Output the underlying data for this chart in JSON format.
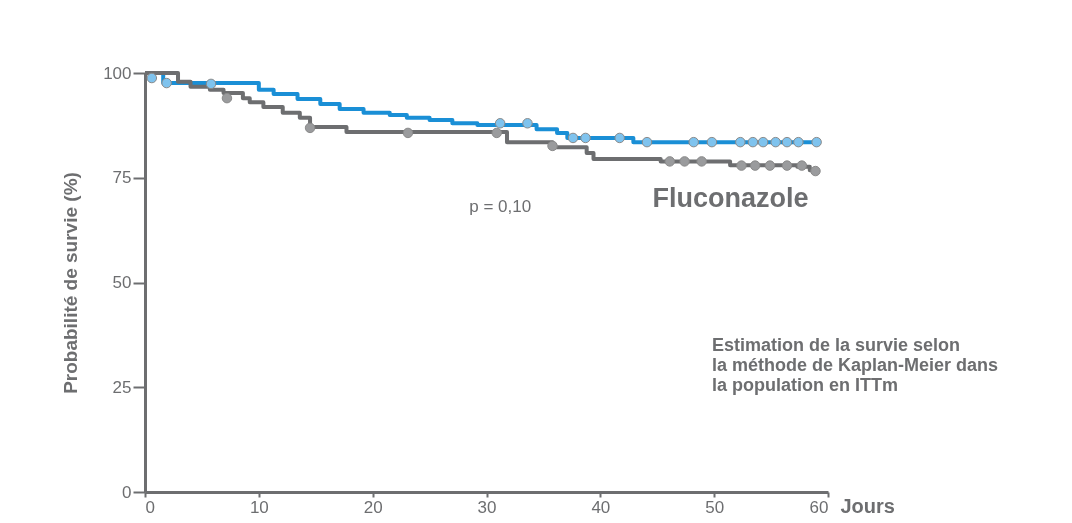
{
  "chart_data": {
    "type": "step",
    "xlabel": "Jours",
    "ylabel": "Probabilité de survie (%)",
    "xlim": [
      0,
      60
    ],
    "xticks": [
      0,
      10,
      20,
      30,
      40,
      50,
      60
    ],
    "ylim": [
      0,
      100
    ],
    "yticks": [
      0,
      25,
      50,
      75,
      100
    ],
    "grid": false,
    "line_style": "solid",
    "annotations": [
      "p = 0,10",
      "Estimation de la survie selon la méthode de Kaplan-Meier dans la population en ITTm"
    ],
    "series": [
      {
        "color": "#1a8fd6",
        "x": [
          0,
          1.6,
          10,
          11.3,
          13.4,
          15.4,
          17.1,
          19.2,
          21.5,
          23,
          25,
          27,
          29.2,
          34.4,
          36.2,
          37.1,
          42.9,
          59
        ],
        "values": [
          100,
          97.6,
          96,
          95,
          93.8,
          92.6,
          91.4,
          90.5,
          90,
          89.3,
          88.8,
          88,
          87.6,
          86.6,
          85.7,
          84.5,
          83.5,
          83.5
        ]
      },
      {
        "name": "Fluconazole",
        "color": "#6d6e70",
        "x": [
          0,
          2.9,
          4,
          5.7,
          6.9,
          8.6,
          9.2,
          10.4,
          12.1,
          13.6,
          14.5,
          17.7,
          31.8,
          35.8,
          38.8,
          39.4,
          45.3,
          51.4,
          57.3,
          58.4,
          59
        ],
        "values": [
          100,
          97.9,
          96.7,
          96,
          95.2,
          94,
          93,
          91.9,
          90.5,
          89.3,
          87.1,
          85.9,
          83.5,
          82.3,
          80.9,
          79.5,
          78.9,
          78,
          77.6,
          76.8,
          76.8
        ]
      },
      {
        "type": "scatter",
        "marker": "circle",
        "color": "#7fc3ee",
        "x": [
          0.6,
          1.9,
          5.8,
          31.2,
          33.6,
          37.6,
          38.7,
          41.7,
          44.1,
          48.2,
          49.8,
          52.3,
          53.4,
          54.3,
          55.4,
          56.4,
          57.4,
          59
        ],
        "values": [
          98.8,
          97.6,
          97.4,
          88,
          88,
          84.5,
          84.5,
          84.5,
          83.5,
          83.5,
          83.5,
          83.5,
          83.5,
          83.5,
          83.5,
          83.5,
          83.5,
          83.5
        ]
      },
      {
        "type": "scatter",
        "marker": "circle",
        "color": "#9a9b9d",
        "x": [
          7.2,
          14.5,
          23.1,
          30.9,
          35.8,
          46.1,
          47.4,
          48.9,
          52.4,
          53.6,
          54.9,
          56.4,
          57.7,
          58.9
        ],
        "values": [
          94,
          86.9,
          85.7,
          85.7,
          82.6,
          78.9,
          78.9,
          78.9,
          77.9,
          77.9,
          77.9,
          77.9,
          77.9,
          76.6
        ]
      }
    ]
  }
}
